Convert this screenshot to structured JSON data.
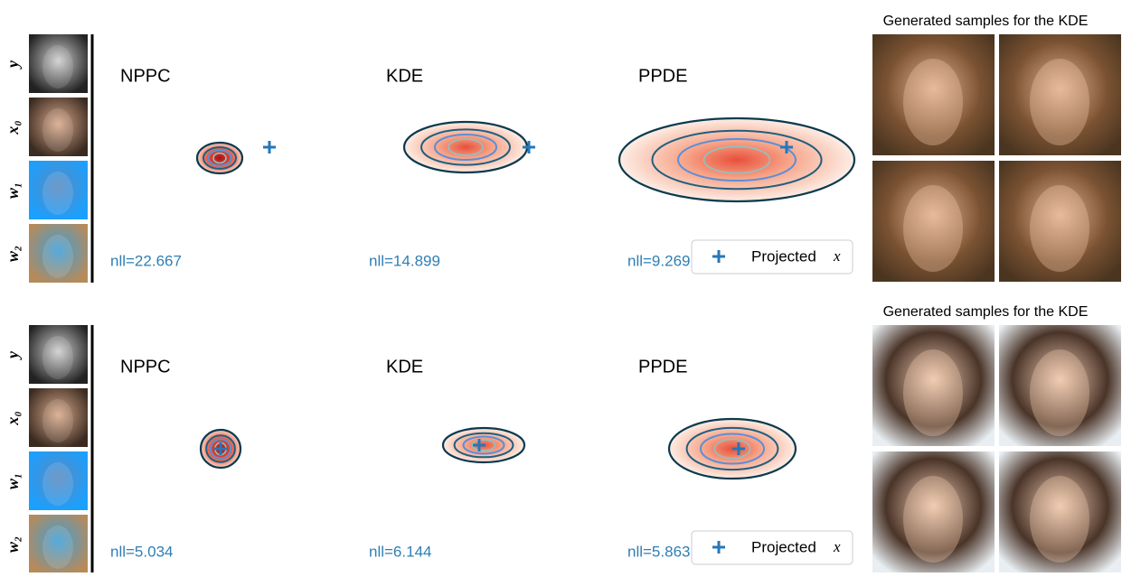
{
  "rows": [
    {
      "input_labels": [
        "y",
        "x₀",
        "w₁",
        "w₂"
      ],
      "panels": [
        {
          "method": "NPPC",
          "nll": "nll=22.667"
        },
        {
          "method": "KDE",
          "nll": "nll=14.899"
        },
        {
          "method": "PPDE",
          "nll": "nll=9.269"
        }
      ],
      "legend": {
        "label": "Projected",
        "variable": "x"
      },
      "samples_title": "Generated samples for the KDE"
    },
    {
      "input_labels": [
        "y",
        "x₀",
        "w₁",
        "w₂"
      ],
      "panels": [
        {
          "method": "NPPC",
          "nll": "nll=5.034"
        },
        {
          "method": "KDE",
          "nll": "nll=6.144"
        },
        {
          "method": "PPDE",
          "nll": "nll=5.863"
        }
      ],
      "legend": {
        "label": "Projected",
        "variable": "x"
      },
      "samples_title": "Generated samples for the KDE"
    }
  ]
}
